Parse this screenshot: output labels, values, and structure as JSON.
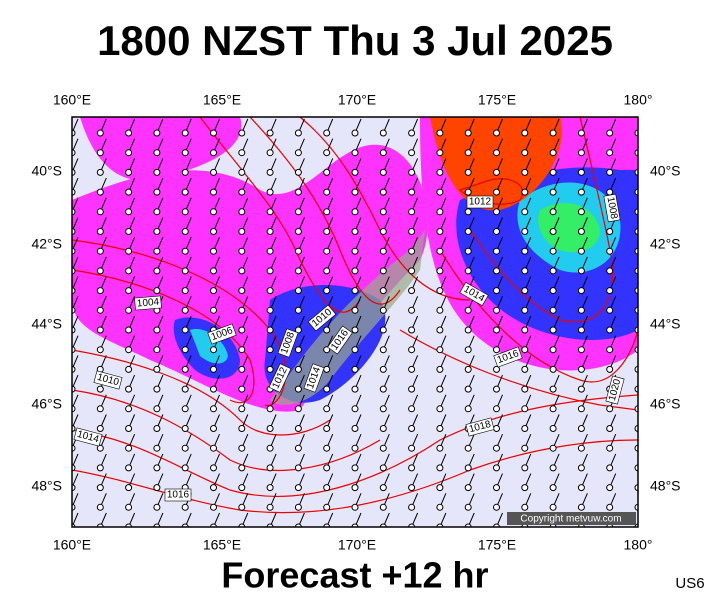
{
  "header": {
    "title": "1800 NZST Thu 3 Jul 2025"
  },
  "map": {
    "lon_labels": [
      "160°E",
      "165°E",
      "170°E",
      "175°E",
      "180°"
    ],
    "lat_labels": [
      "40°S",
      "42°S",
      "44°S",
      "46°S",
      "48°S"
    ],
    "isobar_labels": [
      "1012",
      "1008",
      "1004",
      "1006",
      "1008",
      "1010",
      "1016",
      "1012",
      "1014",
      "1010",
      "1014",
      "1016",
      "1020",
      "1018",
      "1014",
      "1016"
    ],
    "copyright": "Copyright metvuw.com"
  },
  "footer": {
    "forecast": "Forecast +12 hr",
    "model": "US6"
  }
}
